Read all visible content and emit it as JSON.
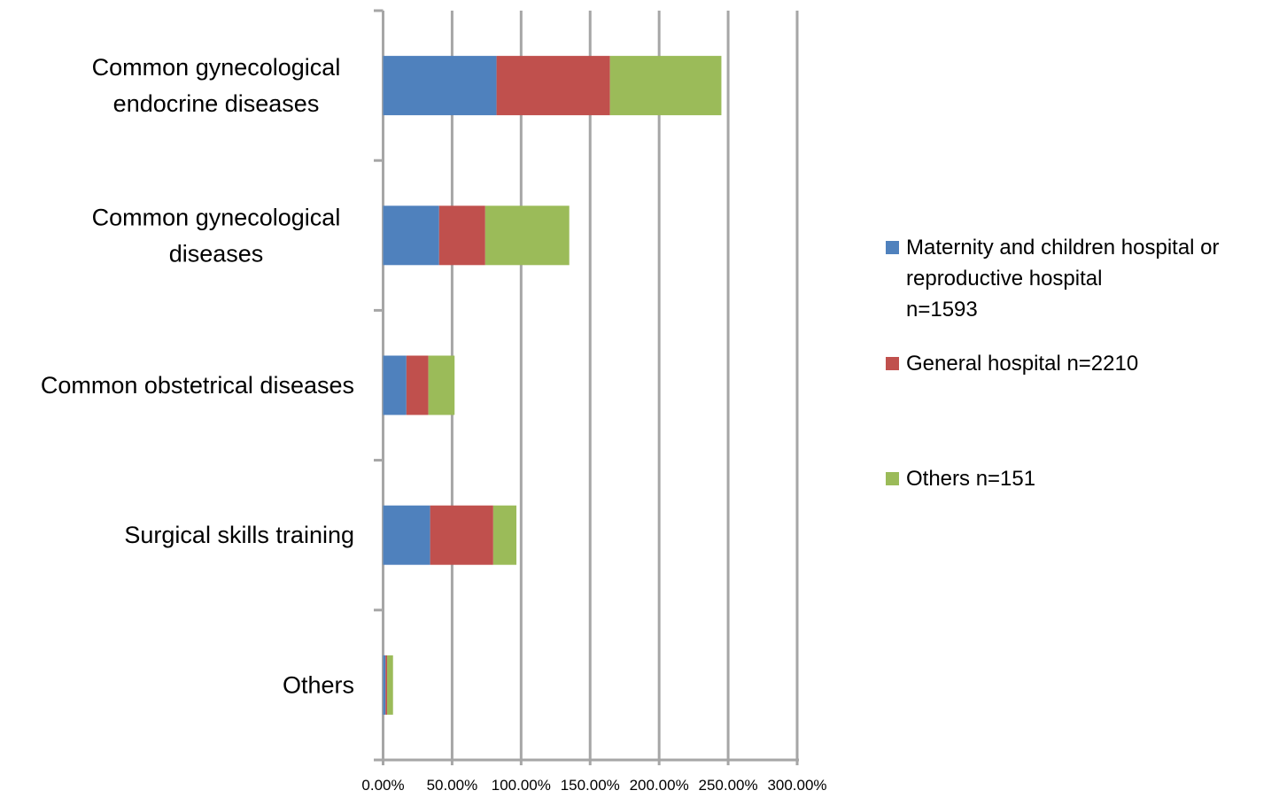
{
  "chart_data": {
    "type": "bar",
    "orientation": "horizontal",
    "stacked": true,
    "title": "",
    "xlabel": "",
    "ylabel": "",
    "xlim": [
      0,
      300
    ],
    "grid": true,
    "legend_position": "right",
    "categories": [
      "Common gynecological\nendocrine diseases",
      "Common gynecological\ndiseases",
      "Common obstetrical diseases",
      "Surgical skills training",
      "Others"
    ],
    "x_tick_labels": [
      "0.00%",
      "50.00%",
      "100.00%",
      "150.00%",
      "200.00%",
      "250.00%",
      "300.00%"
    ],
    "x_ticks": [
      0,
      50,
      100,
      150,
      200,
      250,
      300
    ],
    "series": [
      {
        "name": "Maternity and children hospital or\nreproductive hospital\nn=1593",
        "color": "#4F81BD",
        "values": [
          82.2,
          40.6,
          16.9,
          34.1,
          1.8
        ]
      },
      {
        "name": "General hospital n=2210",
        "color": "#C0504D",
        "values": [
          82.2,
          33.4,
          15.9,
          45.7,
          1.1
        ]
      },
      {
        "name": "Others n=151",
        "color": "#9BBB59",
        "values": [
          80.7,
          60.9,
          19.0,
          16.8,
          4.3
        ]
      }
    ]
  }
}
